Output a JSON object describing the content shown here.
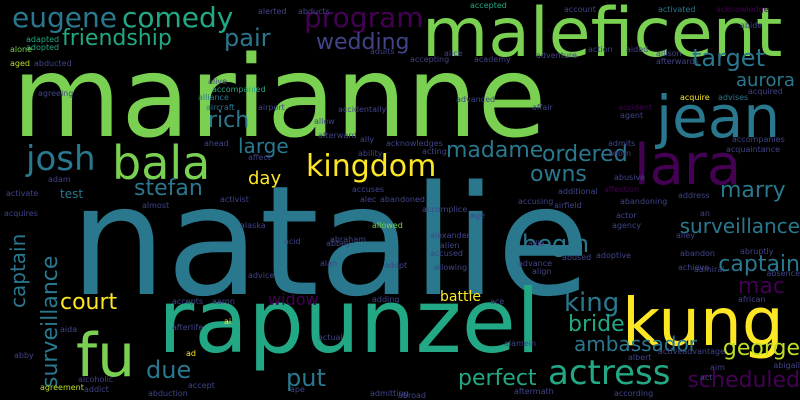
{
  "palette": {
    "background": "#000000",
    "light_green": "#7ad151",
    "green": "#22a884",
    "teal": "#2a788e",
    "blue": "#414487",
    "purple": "#440154",
    "yellow": "#fde725",
    "lime": "#bddf26"
  },
  "words": [
    {
      "text": "natalie",
      "color": "#2a788e"
    },
    {
      "text": "marianne",
      "color": "#7ad151"
    },
    {
      "text": "rapunzel",
      "color": "#22a884"
    },
    {
      "text": "maleficent",
      "color": "#7ad151"
    },
    {
      "text": "kung",
      "color": "#fde725"
    },
    {
      "text": "fu",
      "color": "#7ad151"
    },
    {
      "text": "lara",
      "color": "#440154"
    },
    {
      "text": "jean",
      "color": "#2a788e"
    },
    {
      "text": "bala",
      "color": "#7ad151"
    },
    {
      "text": "actress",
      "color": "#22a884"
    },
    {
      "text": "kingdom",
      "color": "#fde725"
    },
    {
      "text": "josh",
      "color": "#2a788e"
    },
    {
      "text": "comedy",
      "color": "#22a884"
    },
    {
      "text": "eugene",
      "color": "#2a788e"
    },
    {
      "text": "program",
      "color": "#440154"
    },
    {
      "text": "friendship",
      "color": "#22a884"
    },
    {
      "text": "wedding",
      "color": "#414487"
    },
    {
      "text": "pair",
      "color": "#2a788e"
    },
    {
      "text": "target",
      "color": "#2a788e"
    },
    {
      "text": "aurora",
      "color": "#2a788e"
    },
    {
      "text": "rich",
      "color": "#2a788e"
    },
    {
      "text": "large",
      "color": "#2a788e"
    },
    {
      "text": "madame",
      "color": "#2a788e"
    },
    {
      "text": "ordered",
      "color": "#2a788e"
    },
    {
      "text": "stefan",
      "color": "#2a788e"
    },
    {
      "text": "owns",
      "color": "#2a788e"
    },
    {
      "text": "marry",
      "color": "#2a788e"
    },
    {
      "text": "day",
      "color": "#fde725"
    },
    {
      "text": "surveillance",
      "color": "#2a788e"
    },
    {
      "text": "captain",
      "color": "#2a788e"
    },
    {
      "text": "mac",
      "color": "#440154"
    },
    {
      "text": "begin",
      "color": "#2a788e"
    },
    {
      "text": "court",
      "color": "#fde725"
    },
    {
      "text": "king",
      "color": "#2a788e"
    },
    {
      "text": "widow",
      "color": "#440154"
    },
    {
      "text": "bride",
      "color": "#22a884"
    },
    {
      "text": "ambassador",
      "color": "#2a788e"
    },
    {
      "text": "george",
      "color": "#bddf26"
    },
    {
      "text": "due",
      "color": "#2a788e"
    },
    {
      "text": "put",
      "color": "#2a788e"
    },
    {
      "text": "perfect",
      "color": "#22a884"
    },
    {
      "text": "scheduled",
      "color": "#440154"
    },
    {
      "text": "battle",
      "color": "#fde725"
    },
    {
      "text": "test",
      "color": "#2a788e"
    },
    {
      "text": "unite",
      "color": "#2a788e"
    },
    {
      "text": "alias",
      "color": "#2a788e"
    },
    {
      "text": "accepted",
      "color": "#22a884"
    },
    {
      "text": "adapted",
      "color": "#22a884"
    },
    {
      "text": "adopted",
      "color": "#22a884"
    },
    {
      "text": "aged",
      "color": "#bddf26"
    },
    {
      "text": "alone",
      "color": "#7ad151"
    },
    {
      "text": "alongside",
      "color": "#414487"
    },
    {
      "text": "aka",
      "color": "#414487"
    },
    {
      "text": "aladdin",
      "color": "#22a884"
    },
    {
      "text": "activated",
      "color": "#2a788e"
    },
    {
      "text": "acknowledge",
      "color": "#440154"
    },
    {
      "text": "accounting",
      "color": "#414487"
    },
    {
      "text": "alerted",
      "color": "#414487"
    },
    {
      "text": "abducts",
      "color": "#414487"
    },
    {
      "text": "account",
      "color": "#414487"
    },
    {
      "text": "abide",
      "color": "#414487"
    },
    {
      "text": "accompanies",
      "color": "#414487"
    },
    {
      "text": "acquaintance",
      "color": "#414487"
    },
    {
      "text": "acquired",
      "color": "#414487"
    },
    {
      "text": "acquire",
      "color": "#fde725"
    },
    {
      "text": "advises",
      "color": "#2a788e"
    },
    {
      "text": "accident",
      "color": "#440154"
    },
    {
      "text": "agent",
      "color": "#414487"
    },
    {
      "text": "admits",
      "color": "#414487"
    },
    {
      "text": "adorn",
      "color": "#414487"
    },
    {
      "text": "address",
      "color": "#414487"
    },
    {
      "text": "affection",
      "color": "#440154"
    },
    {
      "text": "abandoning",
      "color": "#414487"
    },
    {
      "text": "abusive",
      "color": "#414487"
    },
    {
      "text": "alive",
      "color": "#414487"
    },
    {
      "text": "accompanied",
      "color": "#22a884"
    },
    {
      "text": "alliance",
      "color": "#2a788e"
    },
    {
      "text": "aircraft",
      "color": "#2a788e"
    },
    {
      "text": "airport",
      "color": "#414487"
    },
    {
      "text": "allow",
      "color": "#414487"
    },
    {
      "text": "afterward",
      "color": "#414487"
    },
    {
      "text": "accidentally",
      "color": "#414487"
    },
    {
      "text": "acknowledges",
      "color": "#414487"
    },
    {
      "text": "acting",
      "color": "#414487"
    },
    {
      "text": "additional",
      "color": "#414487"
    },
    {
      "text": "accusing",
      "color": "#414487"
    },
    {
      "text": "accuses",
      "color": "#414487"
    },
    {
      "text": "abandoned",
      "color": "#414487"
    },
    {
      "text": "alec",
      "color": "#414487"
    },
    {
      "text": "allowed",
      "color": "#7ad151"
    },
    {
      "text": "alexander",
      "color": "#414487"
    },
    {
      "text": "abraham",
      "color": "#414487"
    },
    {
      "text": "abbey",
      "color": "#414487"
    },
    {
      "text": "acid",
      "color": "#414487"
    },
    {
      "text": "alien",
      "color": "#414487"
    },
    {
      "text": "accused",
      "color": "#414487"
    },
    {
      "text": "abused",
      "color": "#414487"
    },
    {
      "text": "allowing",
      "color": "#414487"
    },
    {
      "text": "align",
      "color": "#414487"
    },
    {
      "text": "advance",
      "color": "#414487"
    },
    {
      "text": "adopt",
      "color": "#414487"
    },
    {
      "text": "alan",
      "color": "#414487"
    },
    {
      "text": "advice",
      "color": "#414487"
    },
    {
      "text": "accepts",
      "color": "#414487"
    },
    {
      "text": "aaron",
      "color": "#414487"
    },
    {
      "text": "adding",
      "color": "#414487"
    },
    {
      "text": "ace",
      "color": "#414487"
    },
    {
      "text": "afterlife",
      "color": "#414487"
    },
    {
      "text": "alamein",
      "color": "#414487"
    },
    {
      "text": "albert",
      "color": "#414487"
    },
    {
      "text": "activeadvantage",
      "color": "#414487"
    },
    {
      "text": "abroad",
      "color": "#414487"
    },
    {
      "text": "aftermath",
      "color": "#414487"
    },
    {
      "text": "according",
      "color": "#414487"
    },
    {
      "text": "admitting",
      "color": "#414487"
    },
    {
      "text": "abduction",
      "color": "#414487"
    },
    {
      "text": "accept",
      "color": "#414487"
    },
    {
      "text": "addict",
      "color": "#414487"
    },
    {
      "text": "agreement",
      "color": "#bddf26"
    },
    {
      "text": "airfield",
      "color": "#414487"
    },
    {
      "text": "actor",
      "color": "#414487"
    },
    {
      "text": "abandon",
      "color": "#414487"
    },
    {
      "text": "admiral",
      "color": "#414487"
    },
    {
      "text": "african",
      "color": "#414487"
    },
    {
      "text": "abruptly",
      "color": "#414487"
    },
    {
      "text": "absence",
      "color": "#414487"
    },
    {
      "text": "abigail",
      "color": "#414487"
    },
    {
      "text": "almost",
      "color": "#414487"
    },
    {
      "text": "activist",
      "color": "#414487"
    },
    {
      "text": "adam",
      "color": "#414487"
    },
    {
      "text": "activate",
      "color": "#414487"
    },
    {
      "text": "acquires",
      "color": "#414487"
    },
    {
      "text": "alley",
      "color": "#414487"
    },
    {
      "text": "achieve",
      "color": "#414487"
    },
    {
      "text": "act",
      "color": "#414487"
    },
    {
      "text": "aim",
      "color": "#414487"
    },
    {
      "text": "ad",
      "color": "#fde725"
    },
    {
      "text": "ai",
      "color": "#fde725"
    },
    {
      "text": "alfred",
      "color": "#414487"
    },
    {
      "text": "alcoholic",
      "color": "#414487"
    },
    {
      "text": "admire",
      "color": "#414487"
    },
    {
      "text": "alright",
      "color": "#414487"
    },
    {
      "text": "aida",
      "color": "#414487"
    },
    {
      "text": "abby",
      "color": "#414487"
    },
    {
      "text": "action",
      "color": "#414487"
    },
    {
      "text": "aided",
      "color": "#414487"
    },
    {
      "text": "allison",
      "color": "#414487"
    },
    {
      "text": "afterwards",
      "color": "#414487"
    },
    {
      "text": "academy",
      "color": "#414487"
    },
    {
      "text": "alice",
      "color": "#414487"
    },
    {
      "text": "accepting",
      "color": "#414487"
    },
    {
      "text": "adventure",
      "color": "#414487"
    },
    {
      "text": "affair",
      "color": "#414487"
    },
    {
      "text": "ally",
      "color": "#414487"
    },
    {
      "text": "ability",
      "color": "#414487"
    },
    {
      "text": "ahead",
      "color": "#414487"
    },
    {
      "text": "affect",
      "color": "#414487"
    },
    {
      "text": "accompany",
      "color": "#414487"
    },
    {
      "text": "accomplice",
      "color": "#414487"
    },
    {
      "text": "age",
      "color": "#414487"
    },
    {
      "text": "allie",
      "color": "#414487"
    },
    {
      "text": "actually",
      "color": "#414487"
    },
    {
      "text": "agency",
      "color": "#414487"
    },
    {
      "text": "adoptive",
      "color": "#414487"
    },
    {
      "text": "agreed",
      "color": "#414487"
    },
    {
      "text": "aggressive",
      "color": "#414487"
    },
    {
      "text": "activities",
      "color": "#414487"
    },
    {
      "text": "actual",
      "color": "#414487"
    },
    {
      "text": "activity",
      "color": "#414487"
    },
    {
      "text": "agreeing",
      "color": "#414487"
    },
    {
      "text": "abducted",
      "color": "#414487"
    },
    {
      "text": "alarm",
      "color": "#414487"
    },
    {
      "text": "abilities",
      "color": "#414487"
    },
    {
      "text": "advanced",
      "color": "#414487"
    },
    {
      "text": "afford",
      "color": "#414487"
    },
    {
      "text": "access",
      "color": "#414487"
    },
    {
      "text": "abandons",
      "color": "#414487"
    },
    {
      "text": "admitted",
      "color": "#414487"
    },
    {
      "text": "alaska",
      "color": "#414487"
    },
    {
      "text": "adult",
      "color": "#414487"
    },
    {
      "text": "adults",
      "color": "#414487"
    },
    {
      "text": "sort",
      "color": "#414487"
    },
    {
      "text": "ape",
      "color": "#414487"
    },
    {
      "text": "an",
      "color": "#414487"
    },
    {
      "text": "alpha",
      "color": "#414487"
    },
    {
      "text": "agree",
      "color": "#414487"
    },
    {
      "text": "adds",
      "color": "#414487"
    },
    {
      "text": "alike",
      "color": "#414487"
    }
  ]
}
